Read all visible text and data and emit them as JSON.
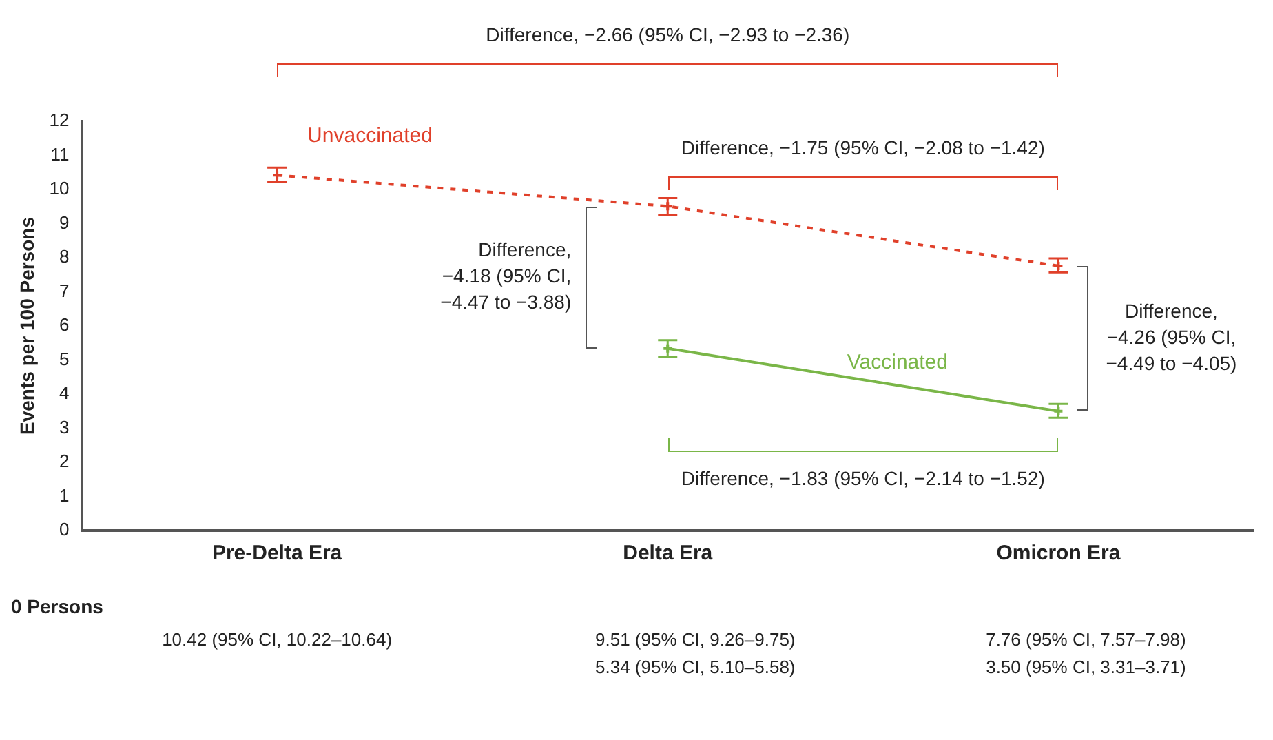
{
  "chart_data": {
    "type": "line",
    "ylabel": "Events per 100 Persons",
    "categories": [
      "Pre-Delta Era",
      "Delta Era",
      "Omicron Era"
    ],
    "ylim": [
      0,
      12
    ],
    "yticks": [
      0,
      1,
      2,
      3,
      4,
      5,
      6,
      7,
      8,
      9,
      10,
      11,
      12
    ],
    "grid": false,
    "legend": false,
    "marker": "cross",
    "series": [
      {
        "name": "Unvaccinated",
        "color": "#e0402a",
        "line_style": "dashed",
        "values": [
          10.42,
          9.51,
          7.76
        ],
        "errors": [
          [
            10.22,
            10.64
          ],
          [
            9.26,
            9.75
          ],
          [
            7.57,
            7.98
          ]
        ],
        "value_labels": [
          "10.42 (95% CI, 10.22–10.64)",
          "9.51 (95% CI, 9.26–9.75)",
          "7.76 (95% CI, 7.57–7.98)"
        ]
      },
      {
        "name": "Vaccinated",
        "color": "#7ab648",
        "line_style": "solid",
        "values": [
          null,
          5.34,
          3.5
        ],
        "errors": [
          null,
          [
            5.1,
            5.58
          ],
          [
            3.31,
            3.71
          ]
        ],
        "value_labels": [
          null,
          "5.34 (95% CI, 5.10–5.58)",
          "3.50 (95% CI, 3.31–3.71)"
        ]
      }
    ],
    "annotations": [
      "Difference, −2.66 (95% CI, −2.93 to −2.36)",
      "Difference, −1.75 (95% CI, −2.08 to −1.42)",
      "Difference,\n−4.18 (95% CI,\n−4.47 to −3.88)",
      "Difference,\n−4.26 (95% CI,\n−4.49 to −4.05)",
      "Difference, −1.83 (95% CI, −2.14 to −1.52)",
      "0 Persons"
    ]
  }
}
